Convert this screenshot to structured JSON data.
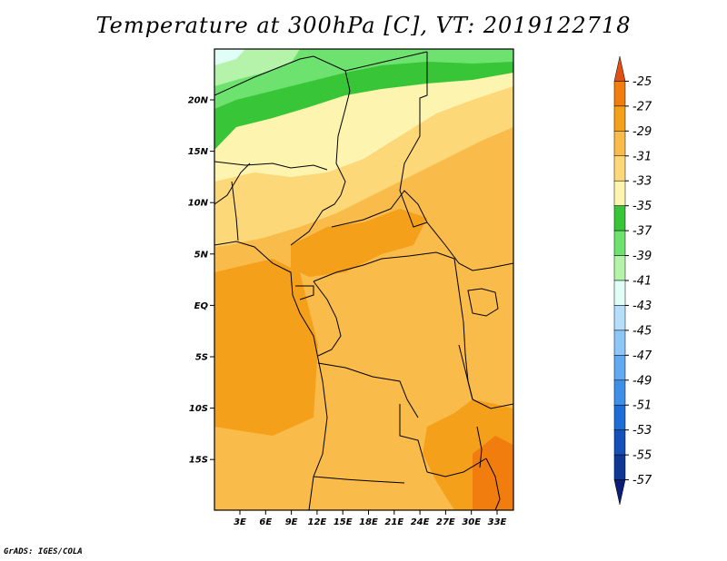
{
  "title": "Temperature at 300hPa [C], VT: 2019122718",
  "credit": "GrADS: IGES/COLA",
  "lat_ticks": [
    "20N",
    "15N",
    "10N",
    "5N",
    "EQ",
    "5S",
    "10S",
    "15S"
  ],
  "lon_ticks": [
    "3E",
    "6E",
    "9E",
    "12E",
    "15E",
    "18E",
    "21E",
    "24E",
    "27E",
    "30E",
    "33E"
  ],
  "colorbar": {
    "labels": [
      "-25",
      "-27",
      "-29",
      "-31",
      "-33",
      "-35",
      "-37",
      "-39",
      "-41",
      "-43",
      "-45",
      "-47",
      "-49",
      "-51",
      "-53",
      "-55",
      "-57"
    ],
    "colors": [
      "#e04f13",
      "#f07d0e",
      "#f5a01a",
      "#f9bb4a",
      "#fcd878",
      "#fdf4b0",
      "#38c638",
      "#6ee26e",
      "#b4f3a9",
      "#e0fdf6",
      "#b5defb",
      "#8dc7f7",
      "#61a9f1",
      "#3d8fe8",
      "#1c6ed6",
      "#1450b8",
      "#0f3796",
      "#0b1e76"
    ]
  }
}
